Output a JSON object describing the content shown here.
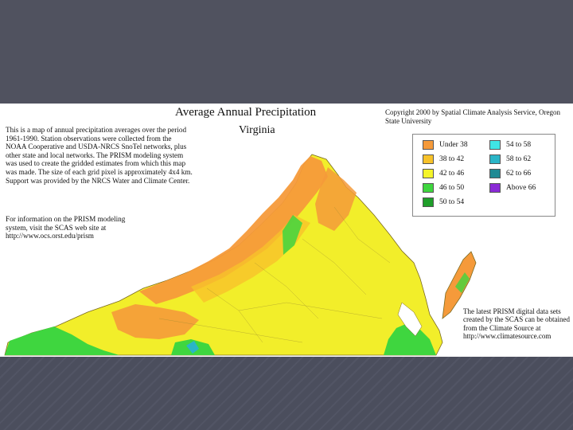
{
  "map": {
    "title": "Average Annual  Precipitation",
    "subtitle": "Virginia",
    "copyright": "Copyright 2000 by Spatial Climate Analysis Service, Oregon State University",
    "description": "This is a map of annual precipitation averages over the period 1961-1990. Station observations were collected from the NOAA Cooperative and USDA-NRCS SnoTel networks, plus other state and local networks. The PRISM modeling system was used to create the gridded estimates from which this map was made. The size of each grid pixel is approximately 4x4 km. Support was provided by the NRCS Water and Climate Center.",
    "info": "For information on the PRISM modeling system, visit the SCAS web site at http://www.ocs.orst.edu/prism",
    "prism_note": "The latest PRISM digital data sets created by the SCAS can be obtained from the Climate Source at http://www.climatesource.com",
    "legend": [
      {
        "label": "Under 38",
        "color": "#f59a3a"
      },
      {
        "label": "38 to 42",
        "color": "#f7c22a"
      },
      {
        "label": "42 to 46",
        "color": "#f5f52a"
      },
      {
        "label": "46 to 50",
        "color": "#3fd63f"
      },
      {
        "label": "50 to 54",
        "color": "#1f9e2a"
      },
      {
        "label": "54 to 58",
        "color": "#3fe6e6"
      },
      {
        "label": "58 to 62",
        "color": "#2ab5c7"
      },
      {
        "label": "62 to 66",
        "color": "#1f8a94"
      },
      {
        "label": "Above 66",
        "color": "#8a2ad6"
      }
    ]
  }
}
